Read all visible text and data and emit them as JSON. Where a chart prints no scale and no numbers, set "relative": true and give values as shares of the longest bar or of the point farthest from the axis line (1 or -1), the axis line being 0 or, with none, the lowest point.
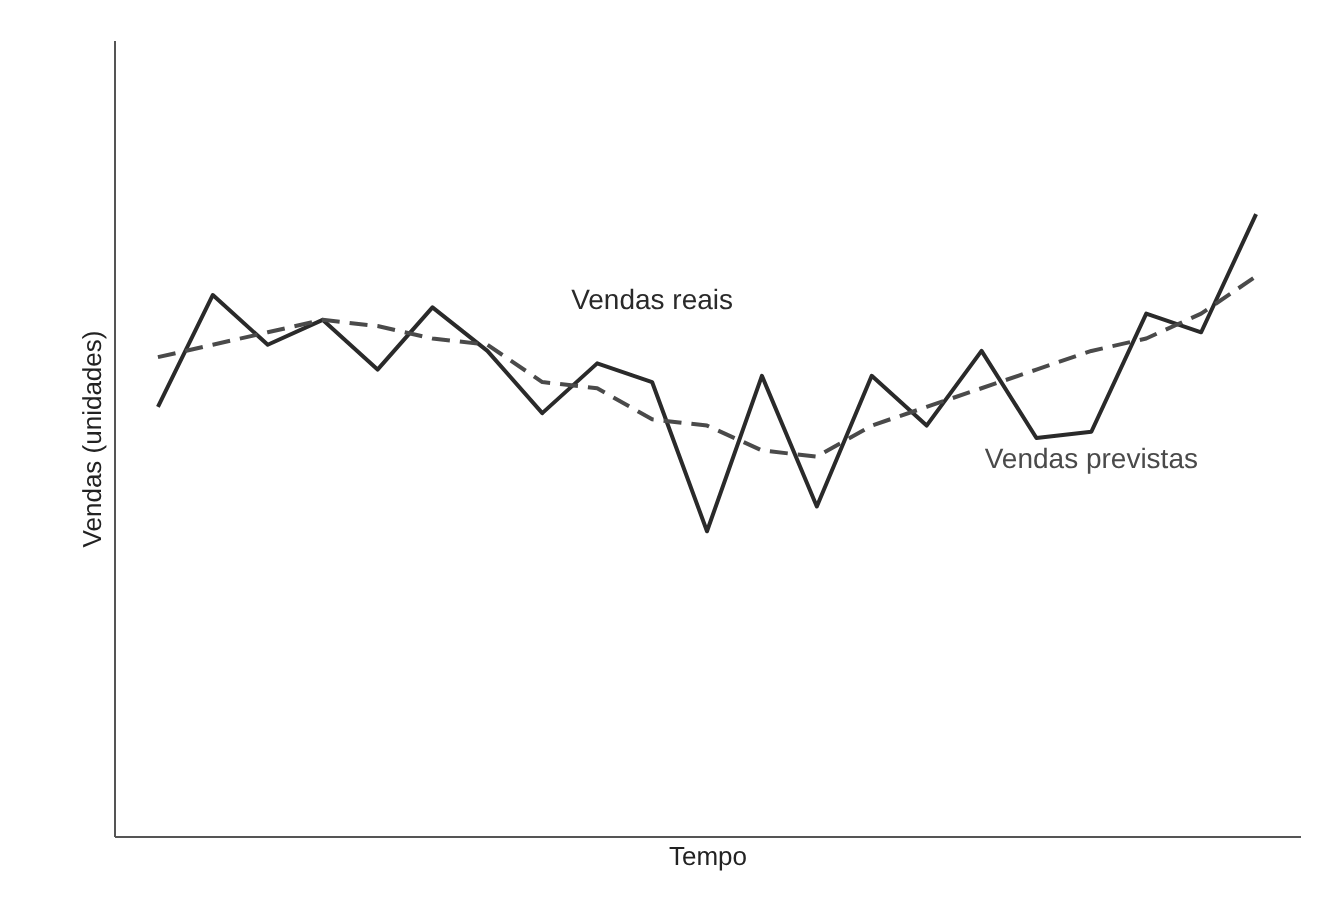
{
  "chart_data": {
    "type": "line",
    "xlabel": "Tempo",
    "ylabel": "Vendas (unidades)",
    "relative": true,
    "legend": false,
    "grid": false,
    "categories": [
      null,
      null,
      null,
      null,
      null,
      null,
      null,
      null,
      null,
      null,
      null,
      null,
      null,
      null,
      null,
      null,
      null,
      null,
      null,
      null,
      null
    ],
    "series": [
      {
        "name": "Vendas reais",
        "color": "#2a2a2a",
        "line_style": "solid",
        "values": [
          0.69,
          0.87,
          0.79,
          0.83,
          0.75,
          0.85,
          0.78,
          0.68,
          0.76,
          0.73,
          0.49,
          0.74,
          0.53,
          0.74,
          0.66,
          0.78,
          0.64,
          0.65,
          0.84,
          0.81,
          1
        ]
      },
      {
        "name": "Vendas previstas",
        "color": "#4a4a4a",
        "line_style": "dashed",
        "values": [
          0.77,
          0.79,
          0.81,
          0.83,
          0.82,
          0.8,
          0.79,
          0.73,
          0.72,
          0.67,
          0.66,
          0.62,
          0.61,
          0.66,
          0.69,
          0.72,
          0.75,
          0.78,
          0.8,
          0.84,
          0.9
        ]
      }
    ]
  }
}
